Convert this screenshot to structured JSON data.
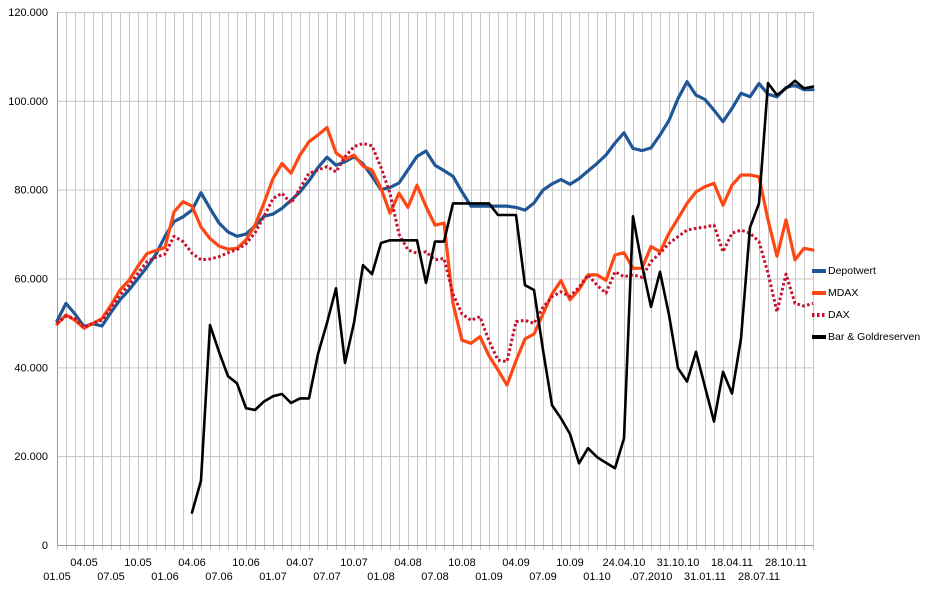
{
  "chart_data": {
    "type": "line",
    "title": "",
    "xlabel": "",
    "ylabel": "",
    "ylim": [
      0,
      120000
    ],
    "y_tick_interval": 20000,
    "y_tick_labels": [
      "0",
      "20.000",
      "40.000",
      "60.000",
      "80.000",
      "100.000",
      "120.000"
    ],
    "x_tick_labels": [
      "01.05",
      "04.05",
      "07.05",
      "10.05",
      "01.06",
      "04.06",
      "07.06",
      "10.06",
      "01.07",
      "04.07",
      "07.07",
      "10.07",
      "01.08",
      "04.08",
      "07.08",
      "10.08",
      "01.09",
      "04.09",
      "07.09",
      "10.09",
      "01.10",
      "24.04.10",
      ".07.2010",
      "31.10.10",
      "31.01.11",
      "18.04.11",
      "28.07.11",
      "28.10.11"
    ],
    "points_per_labeled_tick": 3,
    "num_points": 85,
    "grid": "vertical line at every data point, horizontal line every 20.000",
    "legend_position": "right",
    "series": [
      {
        "name": "Depotwert",
        "color": "#1F5796",
        "style": "solid",
        "values": [
          50400,
          54400,
          52000,
          49200,
          49800,
          49300,
          52400,
          55200,
          57400,
          60000,
          62600,
          65500,
          69500,
          72800,
          73900,
          75400,
          79300,
          75800,
          72500,
          70500,
          69500,
          70000,
          71800,
          74000,
          74500,
          75800,
          77600,
          79500,
          82000,
          85000,
          87300,
          85500,
          86300,
          87400,
          85800,
          83000,
          80000,
          80500,
          81500,
          84500,
          87500,
          88700,
          85500,
          84300,
          83000,
          79500,
          76300,
          76300,
          76300,
          76300,
          76300,
          76000,
          75400,
          77000,
          79900,
          81300,
          82300,
          81200,
          82500,
          84200,
          85900,
          87800,
          90500,
          92800,
          89300,
          88800,
          89400,
          92300,
          95600,
          100500,
          104300,
          101300,
          100300,
          97900,
          95300,
          98300,
          101700,
          100900,
          103900,
          101500,
          100900,
          103000,
          103500,
          102500,
          102500
        ]
      },
      {
        "name": "MDAX",
        "color": "#FF4713",
        "style": "solid",
        "values": [
          49700,
          51800,
          50600,
          48800,
          49900,
          51000,
          54000,
          57400,
          59600,
          62800,
          65600,
          66300,
          67000,
          75000,
          77300,
          76300,
          71600,
          69000,
          67300,
          66600,
          66800,
          68700,
          72000,
          77000,
          82500,
          85900,
          83700,
          87800,
          90800,
          92300,
          94000,
          88300,
          86800,
          87800,
          85300,
          84400,
          80300,
          74700,
          79200,
          76000,
          81000,
          76200,
          72000,
          72500,
          54400,
          46100,
          45400,
          46900,
          42600,
          39400,
          36000,
          41500,
          46400,
          47500,
          52000,
          56500,
          59500,
          55200,
          57500,
          60800,
          60800,
          59600,
          65300,
          65800,
          62300,
          62300,
          67200,
          66000,
          70200,
          73500,
          76900,
          79500,
          80700,
          81400,
          76500,
          81000,
          83300,
          83300,
          82900,
          73200,
          65000,
          73200,
          64200,
          66800,
          66400
        ]
      },
      {
        "name": "DAX",
        "color": "#C8102E",
        "style": "dotted",
        "values": [
          49900,
          51500,
          51000,
          49000,
          50000,
          50600,
          53300,
          56300,
          58500,
          61200,
          63800,
          64800,
          65500,
          69500,
          68300,
          65700,
          64200,
          64400,
          64900,
          65800,
          66500,
          67800,
          70300,
          74000,
          78000,
          79200,
          76900,
          80300,
          83700,
          84400,
          85200,
          84000,
          87400,
          89700,
          90400,
          89900,
          85000,
          79200,
          70000,
          66400,
          65700,
          66000,
          64200,
          64500,
          56500,
          52000,
          50600,
          51400,
          46000,
          41600,
          41300,
          50300,
          50600,
          49900,
          53500,
          55900,
          57000,
          56000,
          58000,
          60800,
          58500,
          56700,
          61500,
          60400,
          60800,
          60300,
          63800,
          65700,
          67900,
          69400,
          70900,
          71300,
          71600,
          72000,
          66000,
          70200,
          70900,
          70200,
          68300,
          61200,
          52500,
          61000,
          54400,
          53800,
          54400
        ]
      },
      {
        "name": "Bar & Goldreserven",
        "color": "#000000",
        "style": "solid",
        "values": [
          null,
          null,
          null,
          null,
          null,
          null,
          null,
          null,
          null,
          null,
          null,
          null,
          null,
          null,
          null,
          7300,
          14500,
          49500,
          43500,
          38000,
          36400,
          30800,
          30400,
          32300,
          33500,
          34000,
          32000,
          33000,
          33000,
          43000,
          50000,
          57800,
          41000,
          50000,
          63000,
          61000,
          68000,
          68600,
          68600,
          68600,
          68600,
          59000,
          68300,
          68300,
          76900,
          76900,
          76900,
          76900,
          76900,
          74300,
          74300,
          74300,
          58500,
          57400,
          43900,
          31500,
          28500,
          25000,
          18400,
          21800,
          19800,
          18500,
          17300,
          24000,
          74000,
          63000,
          53600,
          61500,
          51800,
          39800,
          36800,
          43500,
          35600,
          27800,
          39000,
          34100,
          46500,
          71500,
          76900,
          104000,
          101300,
          102800,
          104500,
          102800,
          103200
        ]
      }
    ]
  },
  "legend": {
    "items": [
      {
        "label": "Depotwert",
        "color": "#1F5796",
        "style": "solid"
      },
      {
        "label": "MDAX",
        "color": "#FF4713",
        "style": "solid"
      },
      {
        "label": "DAX",
        "color": "#C8102E",
        "style": "dotted"
      },
      {
        "label": "Bar & Goldreserven",
        "color": "#000000",
        "style": "solid"
      }
    ]
  },
  "colors": {
    "background": "#ffffff",
    "gridline": "#c6c6c6",
    "axis": "#9b9b9b",
    "tick_text": "#000000"
  }
}
